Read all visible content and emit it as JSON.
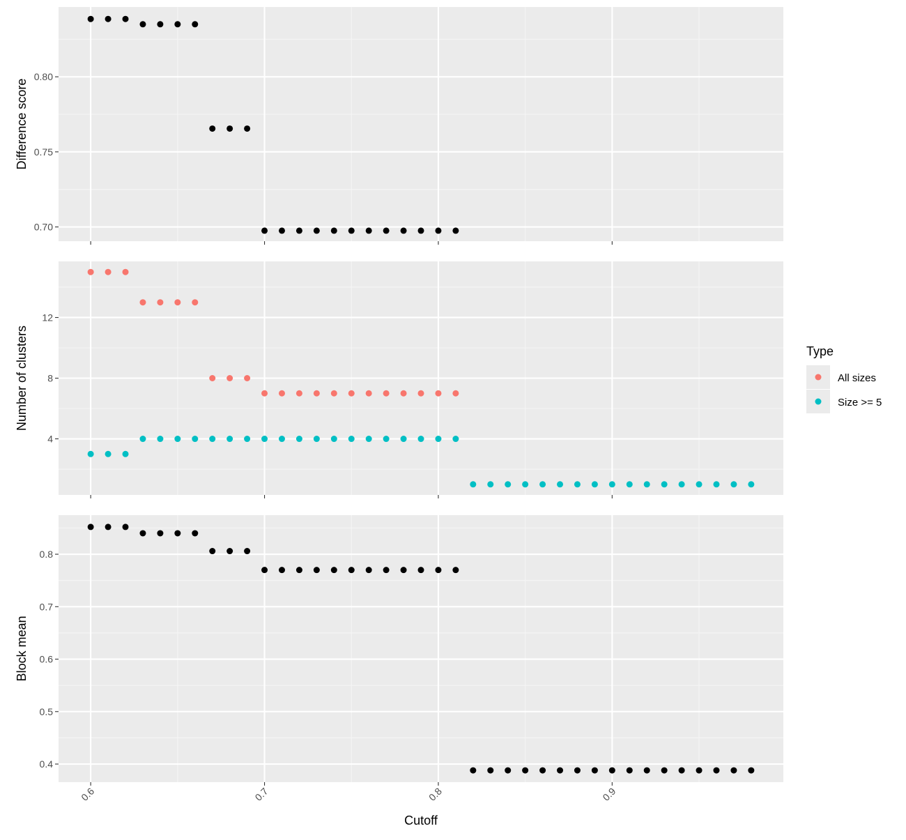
{
  "chart_data": [
    {
      "type": "scatter",
      "panel": "difference-score",
      "ylabel": "Difference score",
      "xlim": [
        0.5815,
        0.9985
      ],
      "ylim": [
        0.6905,
        0.8465
      ],
      "yticks": [
        0.7,
        0.75,
        0.8
      ],
      "ytick_labels": [
        "0.70",
        "0.75",
        "0.80"
      ],
      "series": [
        {
          "color": "#000000",
          "x": [
            0.6,
            0.61,
            0.62,
            0.63,
            0.64,
            0.65,
            0.66,
            0.67,
            0.68,
            0.69,
            0.7,
            0.71,
            0.72,
            0.73,
            0.74,
            0.75,
            0.76,
            0.77,
            0.78,
            0.79,
            0.8,
            0.81
          ],
          "y": [
            0.8385,
            0.8385,
            0.8385,
            0.835,
            0.835,
            0.835,
            0.835,
            0.7655,
            0.7655,
            0.7655,
            0.6975,
            0.6975,
            0.6975,
            0.6975,
            0.6975,
            0.6975,
            0.6975,
            0.6975,
            0.6975,
            0.6975,
            0.6975,
            0.6975
          ]
        }
      ]
    },
    {
      "type": "scatter",
      "panel": "number-of-clusters",
      "ylabel": "Number of clusters",
      "xlim": [
        0.5815,
        0.9985
      ],
      "ylim": [
        0.3,
        15.7
      ],
      "yticks": [
        4,
        8,
        12
      ],
      "ytick_labels": [
        "4",
        "8",
        "12"
      ],
      "series": [
        {
          "name": "All sizes",
          "color": "#F8766D",
          "x": [
            0.6,
            0.61,
            0.62,
            0.63,
            0.64,
            0.65,
            0.66,
            0.67,
            0.68,
            0.69,
            0.7,
            0.71,
            0.72,
            0.73,
            0.74,
            0.75,
            0.76,
            0.77,
            0.78,
            0.79,
            0.8,
            0.81
          ],
          "y": [
            15,
            15,
            15,
            13,
            13,
            13,
            13,
            8,
            8,
            8,
            7,
            7,
            7,
            7,
            7,
            7,
            7,
            7,
            7,
            7,
            7,
            7
          ]
        },
        {
          "name": "Size >= 5",
          "color": "#00BFC4",
          "x": [
            0.6,
            0.61,
            0.62,
            0.63,
            0.64,
            0.65,
            0.66,
            0.67,
            0.68,
            0.69,
            0.7,
            0.71,
            0.72,
            0.73,
            0.74,
            0.75,
            0.76,
            0.77,
            0.78,
            0.79,
            0.8,
            0.81,
            0.82,
            0.83,
            0.84,
            0.85,
            0.86,
            0.87,
            0.88,
            0.89,
            0.9,
            0.91,
            0.92,
            0.93,
            0.94,
            0.95,
            0.96,
            0.97,
            0.98
          ],
          "y": [
            3,
            3,
            3,
            4,
            4,
            4,
            4,
            4,
            4,
            4,
            4,
            4,
            4,
            4,
            4,
            4,
            4,
            4,
            4,
            4,
            4,
            4,
            1,
            1,
            1,
            1,
            1,
            1,
            1,
            1,
            1,
            1,
            1,
            1,
            1,
            1,
            1,
            1,
            1
          ]
        }
      ]
    },
    {
      "type": "scatter",
      "panel": "block-mean",
      "ylabel": "Block mean",
      "xlabel": "Cutoff",
      "xlim": [
        0.5815,
        0.9985
      ],
      "ylim": [
        0.3655,
        0.8745
      ],
      "xticks": [
        0.6,
        0.7,
        0.8,
        0.9
      ],
      "xtick_labels": [
        "0.6",
        "0.7",
        "0.8",
        "0.9"
      ],
      "yticks": [
        0.4,
        0.5,
        0.6,
        0.7,
        0.8
      ],
      "ytick_labels": [
        "0.4",
        "0.5",
        "0.6",
        "0.7",
        "0.8"
      ],
      "series": [
        {
          "color": "#000000",
          "x": [
            0.6,
            0.61,
            0.62,
            0.63,
            0.64,
            0.65,
            0.66,
            0.67,
            0.68,
            0.69,
            0.7,
            0.71,
            0.72,
            0.73,
            0.74,
            0.75,
            0.76,
            0.77,
            0.78,
            0.79,
            0.8,
            0.81,
            0.82,
            0.83,
            0.84,
            0.85,
            0.86,
            0.87,
            0.88,
            0.89,
            0.9,
            0.91,
            0.92,
            0.93,
            0.94,
            0.95,
            0.96,
            0.97,
            0.98
          ],
          "y": [
            0.852,
            0.852,
            0.852,
            0.84,
            0.84,
            0.84,
            0.84,
            0.806,
            0.806,
            0.806,
            0.77,
            0.77,
            0.77,
            0.77,
            0.77,
            0.77,
            0.77,
            0.77,
            0.77,
            0.77,
            0.77,
            0.77,
            0.388,
            0.388,
            0.388,
            0.388,
            0.388,
            0.388,
            0.388,
            0.388,
            0.388,
            0.388,
            0.388,
            0.388,
            0.388,
            0.388,
            0.388,
            0.388,
            0.388
          ]
        }
      ]
    }
  ],
  "legend": {
    "title": "Type",
    "placement": "right",
    "items": [
      {
        "label": "All sizes",
        "color": "#F8766D"
      },
      {
        "label": "Size >= 5",
        "color": "#00BFC4"
      }
    ]
  },
  "colors": {
    "panel_background": "#EBEBEB",
    "grid_major": "#FFFFFF",
    "grid_minor": "#F5F5F5",
    "tick_text": "#4D4D4D"
  }
}
